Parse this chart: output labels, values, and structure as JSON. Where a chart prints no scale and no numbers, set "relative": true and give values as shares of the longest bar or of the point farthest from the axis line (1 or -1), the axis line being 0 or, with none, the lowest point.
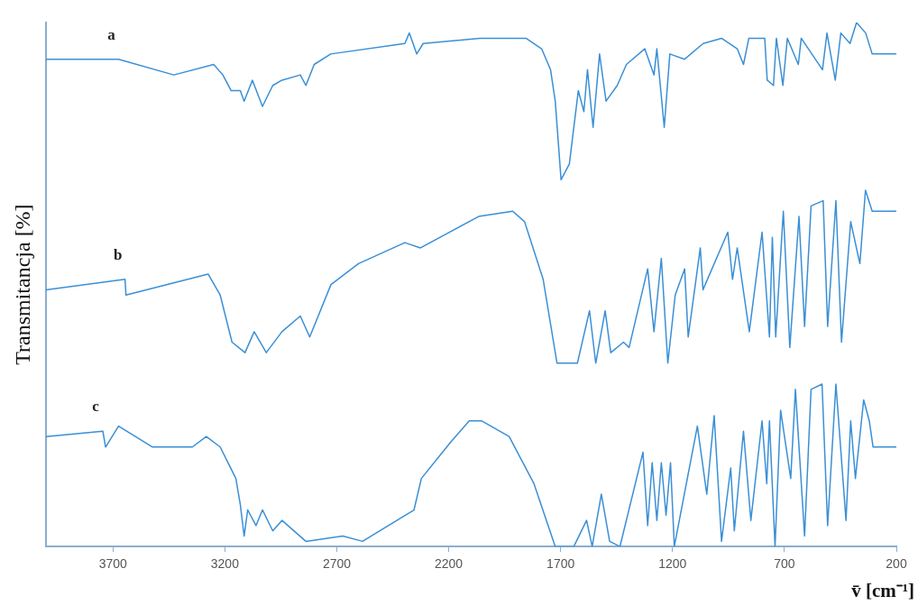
{
  "chart_data": {
    "type": "line",
    "relative": true,
    "xlabel": "v̄ [cm⁻¹]",
    "ylabel": "Transmitancja [%]",
    "xlim": [
      4000,
      200
    ],
    "xticks": [
      3700,
      3200,
      2700,
      2200,
      1700,
      1200,
      700,
      200
    ],
    "grid": false,
    "legend": false,
    "marker": "none",
    "line_style": "solid",
    "series": [
      {
        "name": "a",
        "color": "#3a8fd6",
        "x": [
          4000,
          3675,
          3428,
          3250,
          3209,
          3172,
          3131,
          3114,
          3077,
          3032,
          2986,
          2945,
          2863,
          2838,
          2801,
          2727,
          2396,
          2376,
          2343,
          2314,
          2061,
          1855,
          1785,
          1745,
          1724,
          1698,
          1661,
          1621,
          1596,
          1580,
          1555,
          1526,
          1497,
          1447,
          1406,
          1324,
          1283,
          1270,
          1237,
          1212,
          1146,
          1063,
          981,
          911,
          883,
          859,
          788,
          777,
          749,
          736,
          707,
          687,
          638,
          625,
          530,
          510,
          473,
          448,
          407,
          378,
          337,
          308,
          200
        ],
        "values": [
          0.93,
          0.93,
          0.9,
          0.92,
          0.9,
          0.87,
          0.87,
          0.85,
          0.89,
          0.84,
          0.88,
          0.89,
          0.9,
          0.88,
          0.92,
          0.94,
          0.96,
          0.98,
          0.94,
          0.96,
          0.97,
          0.97,
          0.95,
          0.91,
          0.85,
          0.7,
          0.73,
          0.87,
          0.83,
          0.91,
          0.8,
          0.94,
          0.85,
          0.88,
          0.92,
          0.95,
          0.9,
          0.95,
          0.8,
          0.94,
          0.93,
          0.96,
          0.97,
          0.95,
          0.92,
          0.97,
          0.97,
          0.89,
          0.88,
          0.97,
          0.88,
          0.97,
          0.92,
          0.97,
          0.91,
          0.98,
          0.89,
          0.98,
          0.96,
          1.0,
          0.98,
          0.94,
          0.94
        ]
      },
      {
        "name": "b",
        "color": "#3a8fd6",
        "x": [
          4000,
          3646,
          3642,
          3275,
          3221,
          3168,
          3110,
          3069,
          3015,
          2945,
          2863,
          2821,
          2726,
          2603,
          2396,
          2326,
          2066,
          1914,
          1861,
          1778,
          1716,
          1625,
          1571,
          1543,
          1501,
          1476,
          1419,
          1394,
          1311,
          1283,
          1250,
          1221,
          1188,
          1146,
          1130,
          1076,
          1064,
          953,
          932,
          911,
          857,
          800,
          767,
          754,
          739,
          705,
          676,
          635,
          610,
          581,
          527,
          507,
          470,
          445,
          404,
          363,
          338,
          308,
          200
        ],
        "values": [
          0.49,
          0.51,
          0.48,
          0.52,
          0.48,
          0.39,
          0.37,
          0.41,
          0.37,
          0.41,
          0.44,
          0.4,
          0.5,
          0.54,
          0.58,
          0.57,
          0.63,
          0.64,
          0.62,
          0.51,
          0.35,
          0.35,
          0.45,
          0.35,
          0.45,
          0.37,
          0.39,
          0.38,
          0.53,
          0.41,
          0.55,
          0.35,
          0.48,
          0.53,
          0.4,
          0.57,
          0.49,
          0.6,
          0.51,
          0.57,
          0.41,
          0.6,
          0.4,
          0.59,
          0.4,
          0.64,
          0.38,
          0.63,
          0.42,
          0.65,
          0.66,
          0.42,
          0.66,
          0.39,
          0.62,
          0.54,
          0.68,
          0.64,
          0.64
        ]
      },
      {
        "name": "c",
        "color": "#3a8fd6",
        "x": [
          4000,
          3745,
          3733,
          3675,
          3523,
          3345,
          3283,
          3221,
          3151,
          3131,
          3114,
          3098,
          3061,
          3032,
          2986,
          2945,
          2838,
          2673,
          2585,
          2355,
          2322,
          2190,
          2108,
          2054,
          1930,
          1819,
          1724,
          1641,
          1584,
          1559,
          1518,
          1481,
          1435,
          1332,
          1311,
          1291,
          1270,
          1250,
          1229,
          1209,
          1192,
          1089,
          1047,
          1014,
          981,
          940,
          924,
          883,
          850,
          800,
          779,
          767,
          742,
          717,
          672,
          651,
          610,
          581,
          532,
          507,
          470,
          425,
          404,
          383,
          346,
          321,
          304,
          200
        ],
        "values": [
          0.21,
          0.22,
          0.19,
          0.23,
          0.19,
          0.19,
          0.21,
          0.19,
          0.13,
          0.08,
          0.02,
          0.07,
          0.04,
          0.07,
          0.03,
          0.05,
          0.01,
          0.02,
          0.01,
          0.07,
          0.13,
          0.2,
          0.24,
          0.24,
          0.21,
          0.12,
          0.0,
          0.0,
          0.05,
          0.0,
          0.1,
          0.01,
          0.0,
          0.18,
          0.04,
          0.16,
          0.05,
          0.16,
          0.06,
          0.16,
          0.0,
          0.23,
          0.1,
          0.25,
          0.01,
          0.15,
          0.03,
          0.22,
          0.05,
          0.24,
          0.12,
          0.24,
          0.0,
          0.26,
          0.13,
          0.3,
          0.02,
          0.3,
          0.31,
          0.04,
          0.31,
          0.05,
          0.24,
          0.13,
          0.28,
          0.24,
          0.19,
          0.19
        ]
      }
    ]
  }
}
